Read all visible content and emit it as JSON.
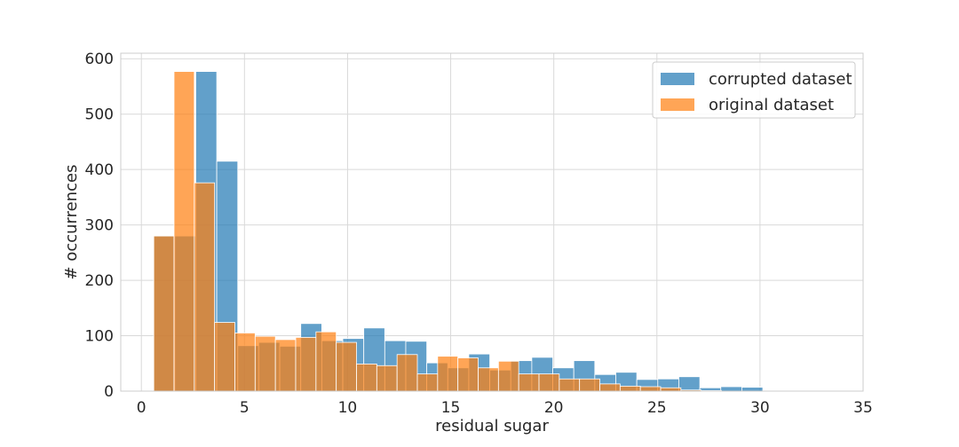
{
  "chart_data": {
    "type": "bar",
    "subtype": "overlaid-histogram",
    "xlabel": "residual sugar",
    "ylabel": "# occurrences",
    "xlim": [
      -1.0,
      35.0
    ],
    "ylim": [
      0,
      610
    ],
    "xticks": [
      0,
      5,
      10,
      15,
      20,
      25,
      30,
      35
    ],
    "yticks": [
      0,
      100,
      200,
      300,
      400,
      500,
      600
    ],
    "grid": true,
    "legend_position": "top-right",
    "colors": {
      "corrupted dataset": "#1f77b4",
      "original dataset": "#ff7f0e",
      "grid": "#d9d9d9",
      "frame": "#cccccc",
      "bar_edge": "#ffffff"
    },
    "series": [
      {
        "name": "corrupted dataset",
        "bin_start": 0.6,
        "bin_width": 1.0185,
        "values": [
          280,
          280,
          577,
          415,
          82,
          88,
          81,
          122,
          91,
          95,
          114,
          91,
          90,
          51,
          42,
          67,
          38,
          55,
          61,
          42,
          55,
          30,
          34,
          21,
          22,
          26,
          6,
          8,
          7,
          1,
          1,
          1,
          1
        ]
      },
      {
        "name": "original dataset",
        "bin_start": 0.6,
        "bin_width": 0.9833,
        "values": [
          280,
          577,
          376,
          124,
          105,
          99,
          93,
          97,
          107,
          88,
          49,
          46,
          66,
          31,
          63,
          60,
          42,
          54,
          31,
          31,
          22,
          22,
          13,
          9,
          8,
          6,
          2,
          1,
          0,
          0,
          0,
          0,
          1,
          1
        ]
      }
    ]
  }
}
